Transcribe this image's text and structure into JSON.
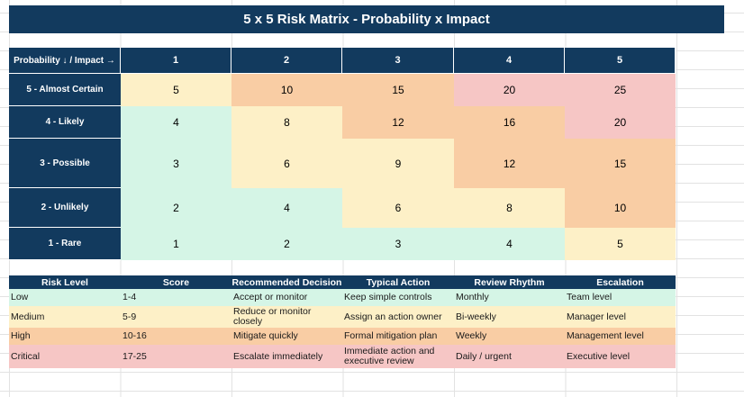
{
  "title": "5 x 5 Risk Matrix - Probability x Impact",
  "matrix": {
    "corner_label": "Probability ↓ / Impact →",
    "impact_headers": [
      "1",
      "2",
      "3",
      "4",
      "5"
    ],
    "rows": [
      {
        "label": "5 - Almost Certain",
        "values": [
          "5",
          "10",
          "15",
          "20",
          "25"
        ],
        "levels": [
          "medium",
          "high",
          "high",
          "critical",
          "critical"
        ]
      },
      {
        "label": "4 - Likely",
        "values": [
          "4",
          "8",
          "12",
          "16",
          "20"
        ],
        "levels": [
          "low",
          "medium",
          "high",
          "high",
          "critical"
        ]
      },
      {
        "label": "3 - Possible",
        "values": [
          "3",
          "6",
          "9",
          "12",
          "15"
        ],
        "levels": [
          "low",
          "medium",
          "medium",
          "high",
          "high"
        ]
      },
      {
        "label": "2 - Unlikely",
        "values": [
          "2",
          "4",
          "6",
          "8",
          "10"
        ],
        "levels": [
          "low",
          "low",
          "medium",
          "medium",
          "high"
        ]
      },
      {
        "label": "1 - Rare",
        "values": [
          "1",
          "2",
          "3",
          "4",
          "5"
        ],
        "levels": [
          "low",
          "low",
          "low",
          "low",
          "medium"
        ]
      }
    ]
  },
  "legend": {
    "headers": [
      "Risk Level",
      "Score",
      "Recommended Decision",
      "Typical Action",
      "Review Rhythm",
      "Escalation"
    ],
    "rows": [
      {
        "level": "low",
        "cells": [
          "Low",
          "1-4",
          "Accept or monitor",
          "Keep simple controls",
          "Monthly",
          "Team level"
        ]
      },
      {
        "level": "medium",
        "cells": [
          "Medium",
          "5-9",
          "Reduce or monitor closely",
          "Assign an action owner",
          "Bi-weekly",
          "Manager level"
        ]
      },
      {
        "level": "high",
        "cells": [
          "High",
          "10-16",
          "Mitigate quickly",
          "Formal mitigation plan",
          "Weekly",
          "Management level"
        ]
      },
      {
        "level": "critical",
        "cells": [
          "Critical",
          "17-25",
          "Escalate immediately",
          "Immediate action and executive review",
          "Daily / urgent",
          "Executive level"
        ]
      }
    ]
  },
  "colors": {
    "header": "#123a5e",
    "low": "#d5f5e6",
    "medium": "#fdf0c7",
    "high": "#f9cda4",
    "critical": "#f6c6c5"
  }
}
